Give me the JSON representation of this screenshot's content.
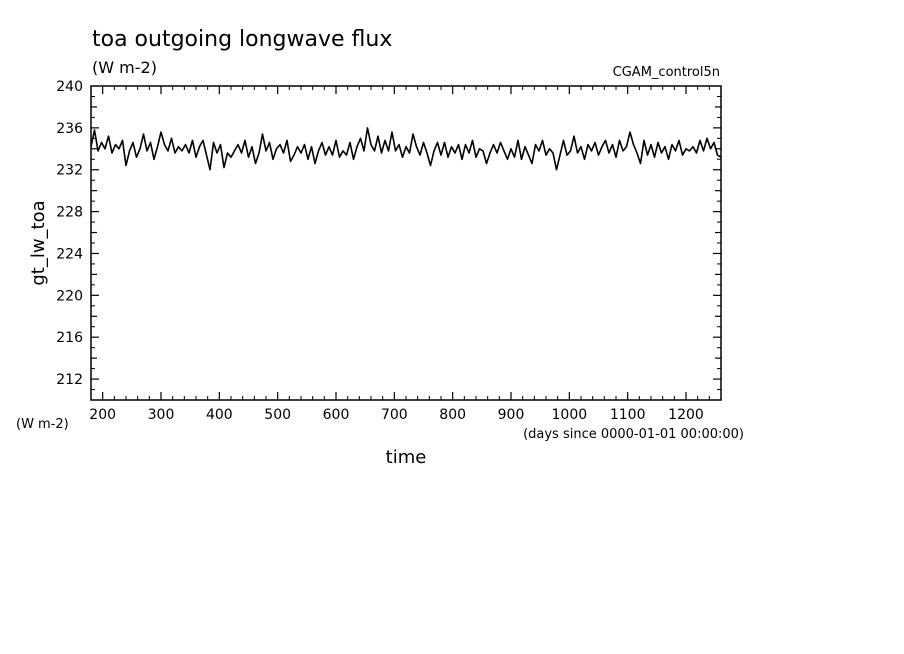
{
  "chart_data": {
    "type": "line",
    "title": "toa outgoing longwave flux",
    "subtitle": "(W m-2)",
    "dataset": "CGAM_control5n",
    "ylabel": "gt_lw_toa",
    "yunits": "(W m-2)",
    "xlabel": "time",
    "xunits": "(days since 0000-01-01 00:00:00)",
    "xlim": [
      180,
      1260
    ],
    "ylim": [
      210,
      240
    ],
    "xticks": [
      200,
      300,
      400,
      500,
      600,
      700,
      800,
      900,
      1000,
      1100,
      1200
    ],
    "yticks": [
      212,
      216,
      220,
      224,
      228,
      232,
      236,
      240
    ],
    "grid": false,
    "series": [
      {
        "x": [
          180,
          186,
          192,
          198,
          204,
          210,
          216,
          222,
          228,
          234,
          240,
          246,
          252,
          258,
          264,
          270,
          276,
          282,
          288,
          294,
          300,
          306,
          312,
          318,
          324,
          330,
          336,
          342,
          348,
          354,
          360,
          366,
          372,
          378,
          384,
          390,
          396,
          402,
          408,
          414,
          420,
          426,
          432,
          438,
          444,
          450,
          456,
          462,
          468,
          474,
          480,
          486,
          492,
          498,
          504,
          510,
          516,
          522,
          528,
          534,
          540,
          546,
          552,
          558,
          564,
          570,
          576,
          582,
          588,
          594,
          600,
          606,
          612,
          618,
          624,
          630,
          636,
          642,
          648,
          654,
          660,
          666,
          672,
          678,
          684,
          690,
          696,
          702,
          708,
          714,
          720,
          726,
          732,
          738,
          744,
          750,
          756,
          762,
          768,
          774,
          780,
          786,
          792,
          798,
          804,
          810,
          816,
          822,
          828,
          834,
          840,
          846,
          852,
          858,
          864,
          870,
          876,
          882,
          888,
          894,
          900,
          906,
          912,
          918,
          924,
          930,
          936,
          942,
          948,
          954,
          960,
          966,
          972,
          978,
          984,
          990,
          996,
          1002,
          1008,
          1014,
          1020,
          1026,
          1032,
          1038,
          1044,
          1050,
          1056,
          1062,
          1068,
          1074,
          1080,
          1086,
          1092,
          1098,
          1104,
          1110,
          1116,
          1122,
          1128,
          1134,
          1140,
          1146,
          1152,
          1158,
          1164,
          1170,
          1176,
          1182,
          1188,
          1194,
          1200,
          1206,
          1212,
          1218,
          1224,
          1230,
          1236,
          1242,
          1248,
          1254,
          1260
        ],
        "values": [
          234.2,
          235.8,
          233.8,
          234.6,
          234.0,
          235.2,
          233.6,
          234.4,
          234.0,
          234.8,
          232.4,
          233.8,
          234.6,
          233.2,
          234.0,
          235.4,
          233.8,
          234.6,
          233.0,
          234.2,
          235.6,
          234.4,
          233.8,
          235.0,
          233.6,
          234.2,
          233.8,
          234.4,
          233.6,
          234.8,
          233.2,
          234.2,
          234.8,
          233.4,
          232.0,
          234.6,
          233.6,
          234.4,
          232.2,
          233.6,
          233.2,
          233.8,
          234.4,
          233.6,
          234.8,
          233.2,
          234.2,
          232.6,
          233.6,
          235.4,
          233.8,
          234.6,
          233.0,
          234.0,
          234.4,
          233.6,
          234.8,
          232.8,
          233.4,
          234.2,
          233.6,
          234.4,
          233.0,
          234.2,
          232.6,
          233.8,
          234.6,
          233.4,
          234.2,
          233.4,
          234.8,
          233.2,
          233.8,
          233.4,
          234.6,
          233.0,
          234.2,
          235.0,
          233.8,
          236.0,
          234.4,
          233.8,
          235.2,
          233.6,
          234.8,
          233.8,
          235.6,
          233.8,
          234.4,
          233.2,
          234.2,
          233.6,
          235.4,
          234.2,
          233.4,
          234.6,
          233.6,
          232.4,
          233.8,
          234.6,
          233.4,
          234.6,
          233.2,
          234.2,
          233.6,
          234.4,
          233.0,
          234.4,
          233.6,
          234.8,
          233.2,
          234.0,
          233.8,
          232.6,
          233.6,
          234.4,
          233.6,
          234.6,
          233.8,
          233.0,
          234.0,
          233.2,
          234.8,
          233.0,
          234.2,
          233.4,
          232.6,
          234.4,
          233.8,
          234.8,
          233.4,
          234.0,
          233.6,
          232.0,
          233.4,
          234.8,
          233.4,
          233.8,
          235.2,
          233.6,
          234.2,
          233.0,
          234.4,
          233.8,
          234.6,
          233.4,
          234.2,
          234.8,
          233.6,
          234.4,
          233.2,
          234.8,
          233.8,
          234.2,
          235.6,
          234.4,
          233.6,
          232.6,
          234.8,
          233.4,
          234.4,
          233.2,
          234.6,
          233.6,
          234.2,
          233.0,
          234.4,
          233.8,
          234.8,
          233.4,
          234.0,
          233.8,
          234.2,
          233.6,
          234.8,
          233.8,
          235.0,
          234.0,
          234.6,
          233.4,
          233.2
        ]
      }
    ]
  }
}
